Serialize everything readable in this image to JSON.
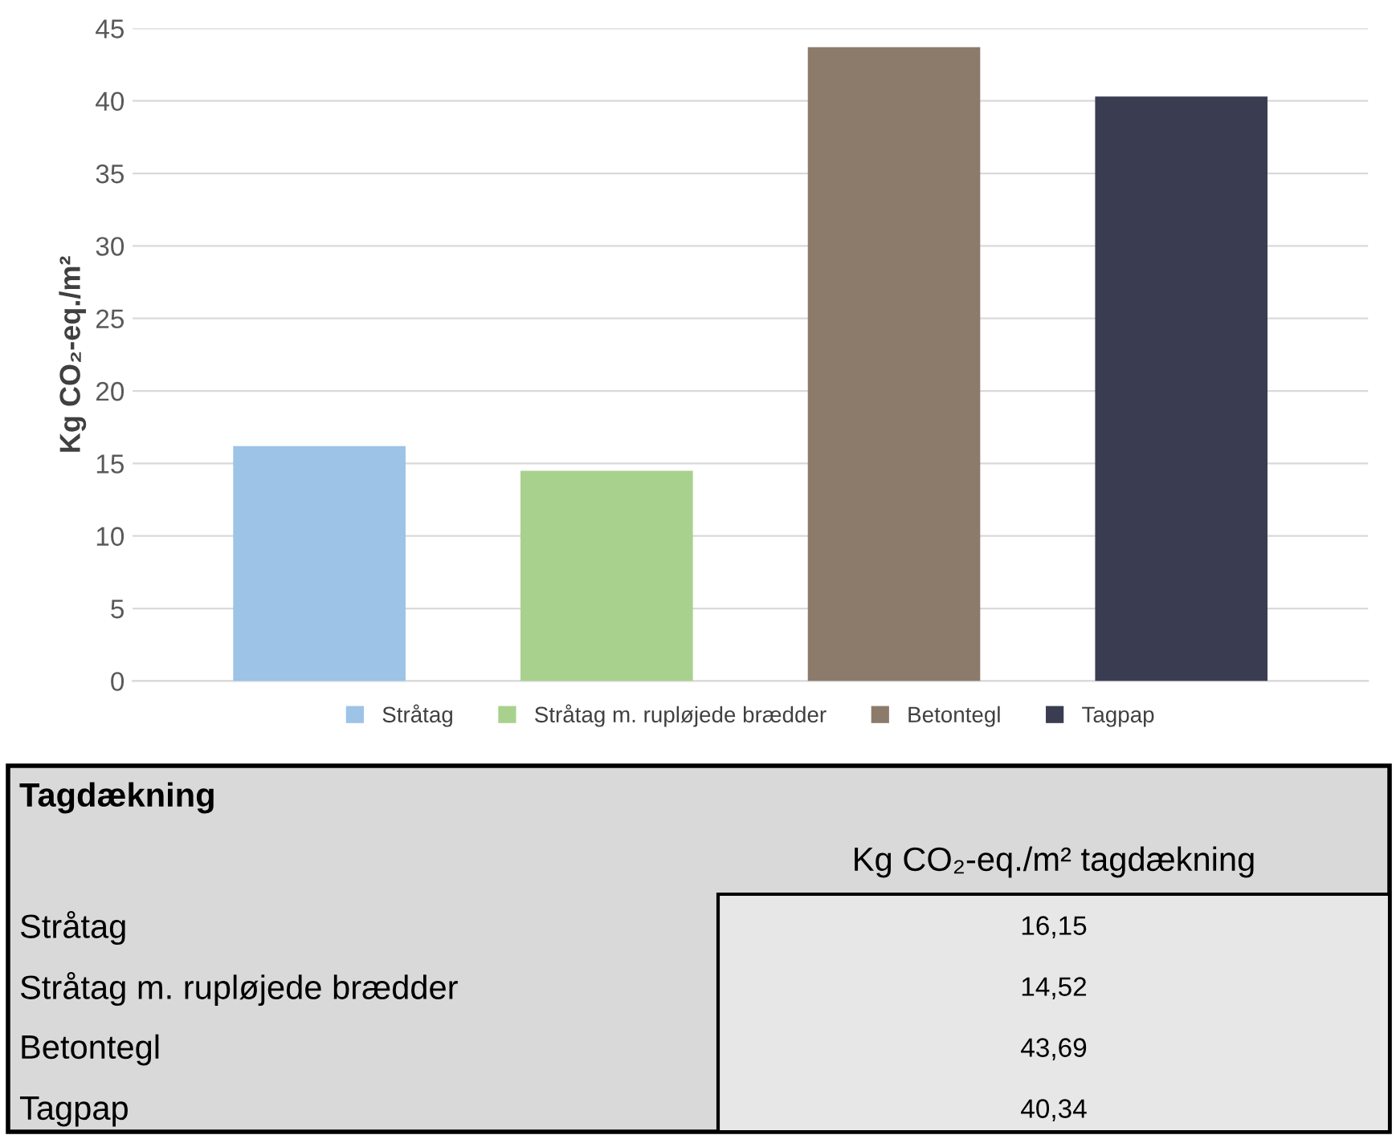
{
  "chart_data": [
    {
      "type": "bar",
      "ylabel": "Kg CO₂-eq./m²",
      "categories": [
        null,
        null,
        null,
        null
      ],
      "stacked": true,
      "series": [
        {
          "name": "Stråtag",
          "color": "#9dc3e6",
          "values": [
            16.2,
            null,
            null,
            null
          ]
        },
        {
          "name": "Stråtag m. rupløjede brædder",
          "color": "#a9d18e",
          "values": [
            null,
            14.5,
            null,
            null
          ]
        },
        {
          "name": "Betontegl",
          "color": "#8c7b6b",
          "values": [
            null,
            null,
            43.7,
            null
          ]
        },
        {
          "name": "Tagpap",
          "color": "#3a3d52",
          "values": [
            null,
            null,
            null,
            40.3
          ]
        }
      ],
      "ylim": [
        0,
        45
      ],
      "yticks": [
        0,
        5,
        10,
        15,
        20,
        25,
        30,
        35,
        40,
        45
      ],
      "grid": "y",
      "legend": "bottom",
      "tick_labels": "y"
    },
    {
      "type": "other",
      "title": "Tagdækning",
      "annotations": [
        "Kg CO₂-eq./m² tagdækning",
        "Stråtag",
        "16,15",
        "Stråtag m. rupløjede brædder",
        "14,52",
        "Betontegl",
        "43,69",
        "Tagpap",
        "40,34"
      ]
    }
  ]
}
